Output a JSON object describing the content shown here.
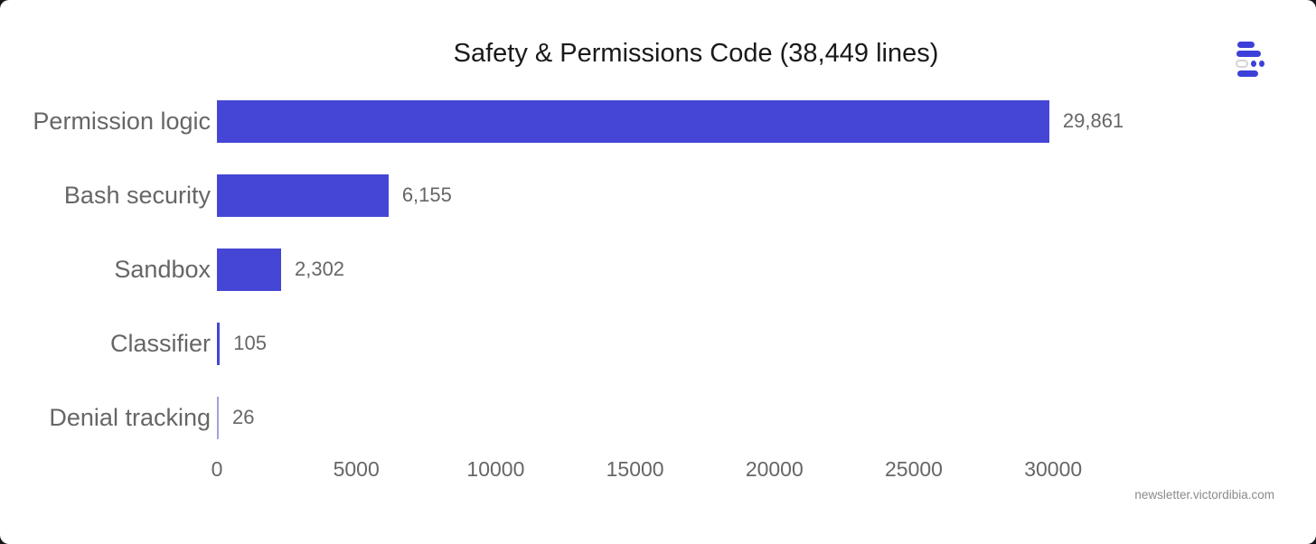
{
  "title": "Safety & Permissions Code (38,449 lines)",
  "watermark": "newsletter.victordibia.com",
  "colors": {
    "bar": "#4545d6",
    "bar_thin": "#9fa0e2",
    "text_gray": "#666666",
    "title_text": "#1a1a1a",
    "logo_blue": "#3d40d8"
  },
  "chart_data": {
    "type": "bar",
    "orientation": "horizontal",
    "title": "Safety & Permissions Code (38,449 lines)",
    "xlabel": "",
    "ylabel": "",
    "categories": [
      "Permission logic",
      "Bash security",
      "Sandbox",
      "Classifier",
      "Denial tracking"
    ],
    "values": [
      29861,
      6155,
      2302,
      105,
      26
    ],
    "value_labels": [
      "29,861",
      "6,155",
      "2,302",
      "105",
      "26"
    ],
    "xticks": [
      0,
      5000,
      10000,
      15000,
      20000,
      25000,
      30000
    ],
    "xlim": [
      0,
      32500
    ],
    "grid": false,
    "legend": false
  }
}
